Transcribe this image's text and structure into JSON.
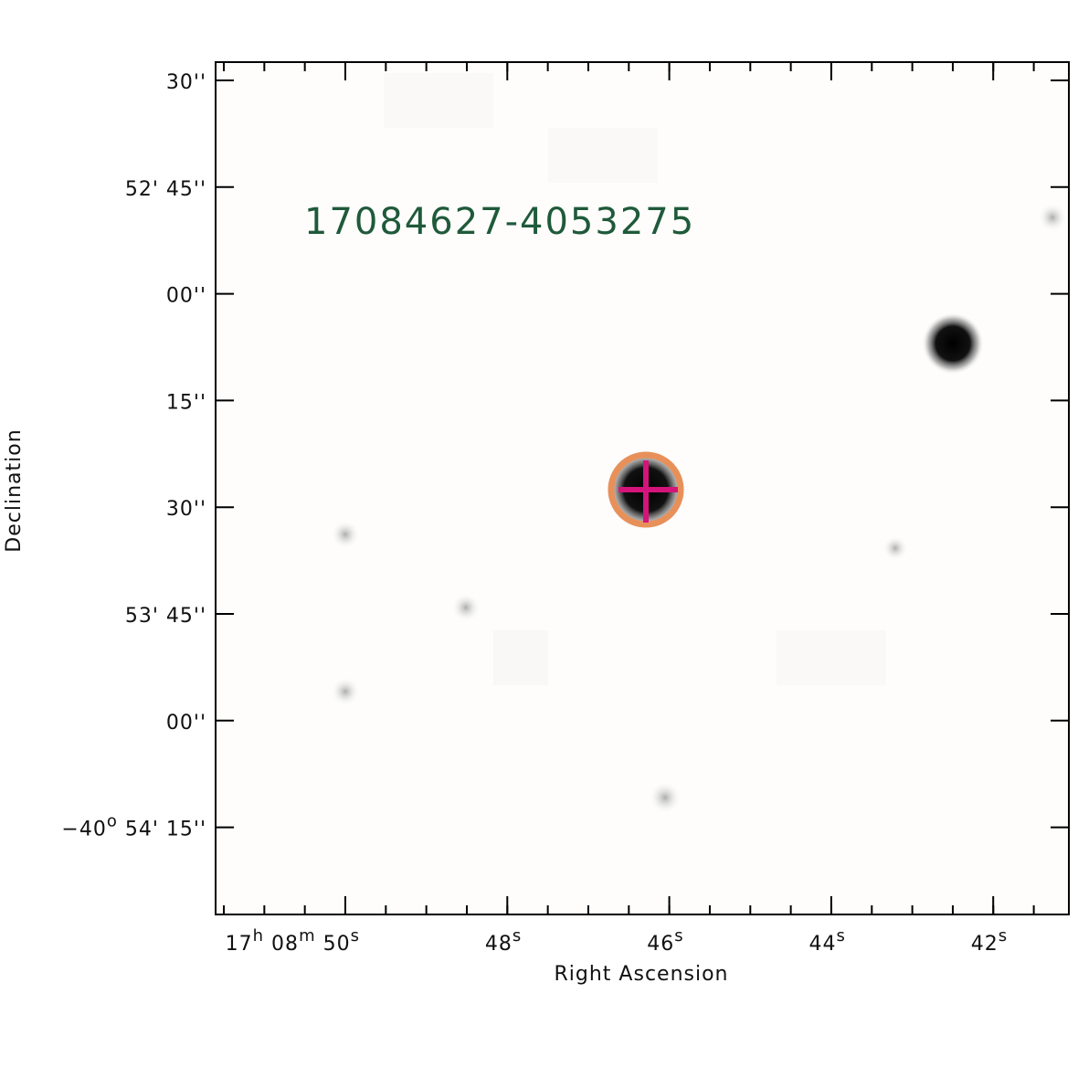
{
  "image": {
    "label": "17084627-4053275",
    "x_axis_label": "Right Ascension",
    "y_axis_label": "Declination",
    "x_ticks": [
      [
        "17",
        "h",
        " 08",
        "m",
        " 50",
        "s"
      ],
      [
        "48",
        "s"
      ],
      [
        "46",
        "s"
      ],
      [
        "44",
        "s"
      ],
      [
        "42",
        "s"
      ]
    ],
    "y_ticks": [
      [
        "30''"
      ],
      [
        "52' 45''"
      ],
      [
        "00''"
      ],
      [
        "15''"
      ],
      [
        "30''"
      ],
      [
        "53' 45''"
      ],
      [
        "00''"
      ],
      [
        "−40",
        "o",
        " 54' 15''"
      ]
    ]
  }
}
